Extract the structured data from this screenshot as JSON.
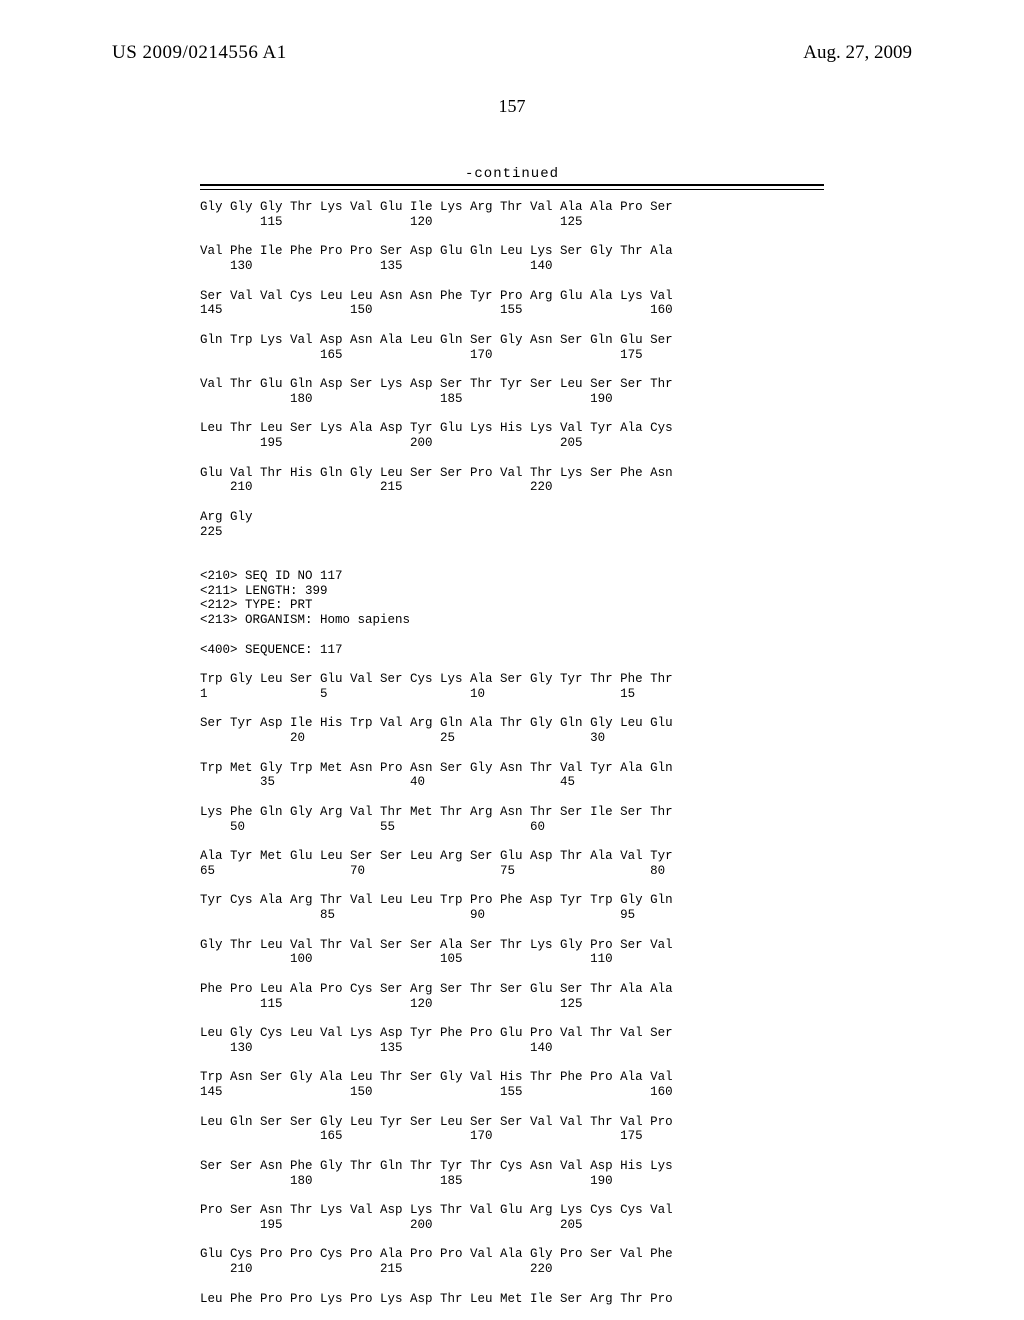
{
  "header": {
    "publication_number": "US 2009/0214556 A1",
    "publication_date": "Aug. 27, 2009",
    "page_number": "157",
    "continued_label": "-continued"
  },
  "sequence_text": "Gly Gly Gly Thr Lys Val Glu Ile Lys Arg Thr Val Ala Ala Pro Ser\n        115                 120                 125\n\nVal Phe Ile Phe Pro Pro Ser Asp Glu Gln Leu Lys Ser Gly Thr Ala\n    130                 135                 140\n\nSer Val Val Cys Leu Leu Asn Asn Phe Tyr Pro Arg Glu Ala Lys Val\n145                 150                 155                 160\n\nGln Trp Lys Val Asp Asn Ala Leu Gln Ser Gly Asn Ser Gln Glu Ser\n                165                 170                 175\n\nVal Thr Glu Gln Asp Ser Lys Asp Ser Thr Tyr Ser Leu Ser Ser Thr\n            180                 185                 190\n\nLeu Thr Leu Ser Lys Ala Asp Tyr Glu Lys His Lys Val Tyr Ala Cys\n        195                 200                 205\n\nGlu Val Thr His Gln Gly Leu Ser Ser Pro Val Thr Lys Ser Phe Asn\n    210                 215                 220\n\nArg Gly\n225\n\n\n<210> SEQ ID NO 117\n<211> LENGTH: 399\n<212> TYPE: PRT\n<213> ORGANISM: Homo sapiens\n\n<400> SEQUENCE: 117\n\nTrp Gly Leu Ser Glu Val Ser Cys Lys Ala Ser Gly Tyr Thr Phe Thr\n1               5                   10                  15\n\nSer Tyr Asp Ile His Trp Val Arg Gln Ala Thr Gly Gln Gly Leu Glu\n            20                  25                  30\n\nTrp Met Gly Trp Met Asn Pro Asn Ser Gly Asn Thr Val Tyr Ala Gln\n        35                  40                  45\n\nLys Phe Gln Gly Arg Val Thr Met Thr Arg Asn Thr Ser Ile Ser Thr\n    50                  55                  60\n\nAla Tyr Met Glu Leu Ser Ser Leu Arg Ser Glu Asp Thr Ala Val Tyr\n65                  70                  75                  80\n\nTyr Cys Ala Arg Thr Val Leu Leu Trp Pro Phe Asp Tyr Trp Gly Gln\n                85                  90                  95\n\nGly Thr Leu Val Thr Val Ser Ser Ala Ser Thr Lys Gly Pro Ser Val\n            100                 105                 110\n\nPhe Pro Leu Ala Pro Cys Ser Arg Ser Thr Ser Glu Ser Thr Ala Ala\n        115                 120                 125\n\nLeu Gly Cys Leu Val Lys Asp Tyr Phe Pro Glu Pro Val Thr Val Ser\n    130                 135                 140\n\nTrp Asn Ser Gly Ala Leu Thr Ser Gly Val His Thr Phe Pro Ala Val\n145                 150                 155                 160\n\nLeu Gln Ser Ser Gly Leu Tyr Ser Leu Ser Ser Val Val Thr Val Pro\n                165                 170                 175\n\nSer Ser Asn Phe Gly Thr Gln Thr Tyr Thr Cys Asn Val Asp His Lys\n            180                 185                 190\n\nPro Ser Asn Thr Lys Val Asp Lys Thr Val Glu Arg Lys Cys Cys Val\n        195                 200                 205\n\nGlu Cys Pro Pro Cys Pro Ala Pro Pro Val Ala Gly Pro Ser Val Phe\n    210                 215                 220\n\nLeu Phe Pro Pro Lys Pro Lys Asp Thr Leu Met Ile Ser Arg Thr Pro"
}
